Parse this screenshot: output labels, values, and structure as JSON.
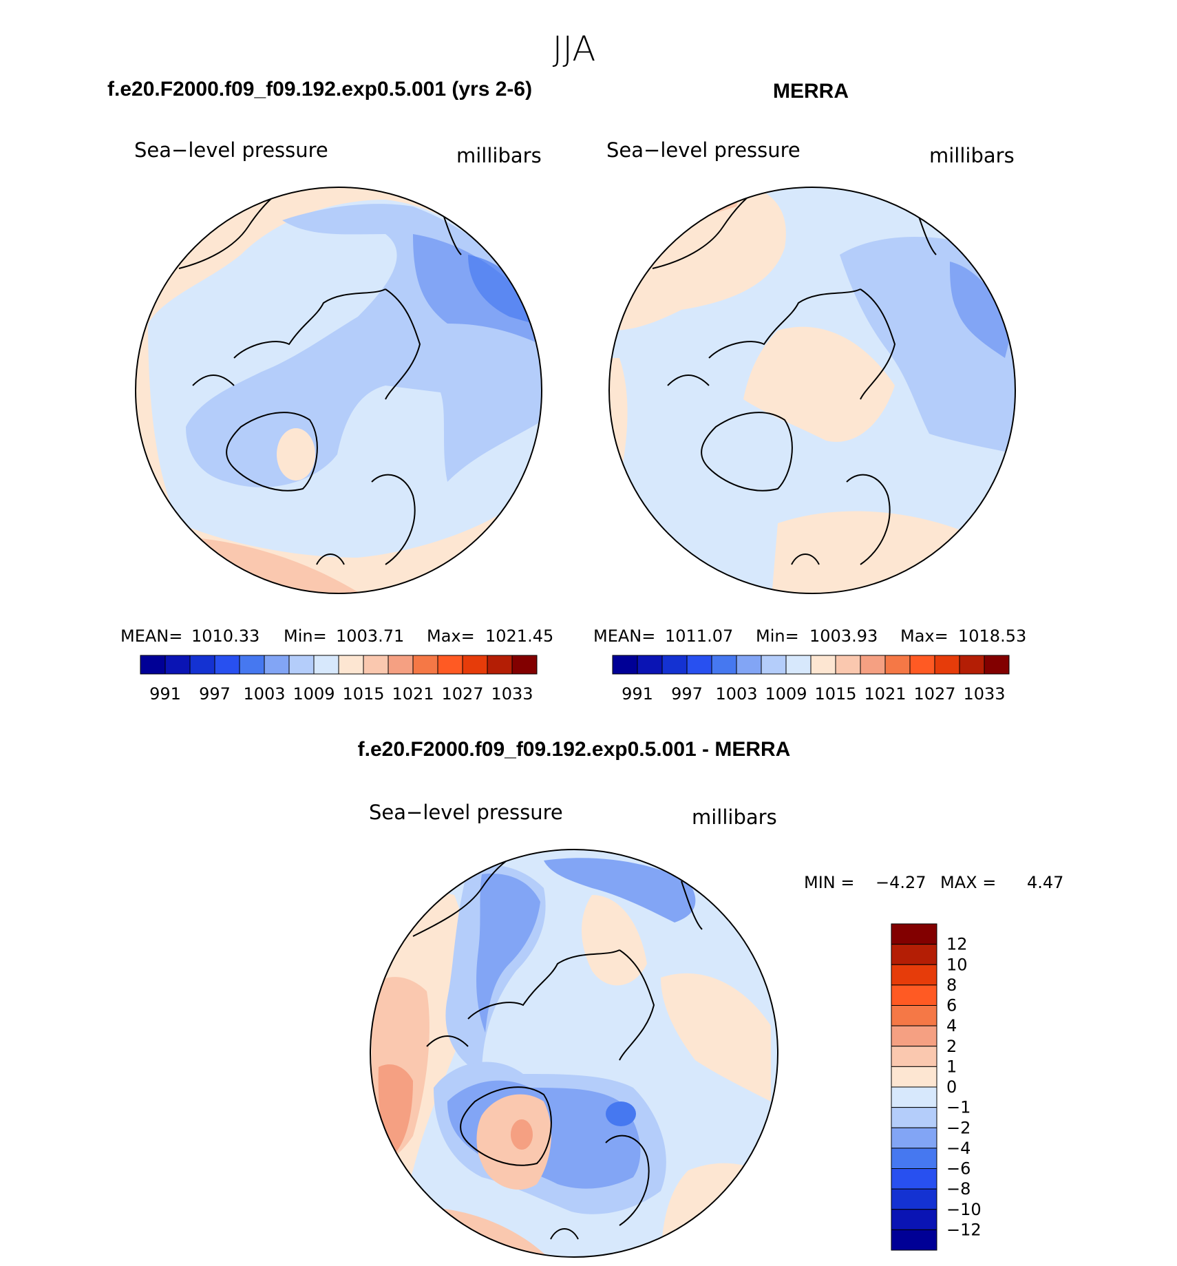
{
  "page_title": "JJA",
  "palette": {
    "blue_1": "#000096",
    "blue_2": "#0a14b4",
    "blue_3": "#1432d2",
    "blue_4": "#2850f0",
    "blue_5": "#4678f0",
    "blue_6": "#82a5f5",
    "blue_7": "#b4cdfa",
    "blue_8": "#d7e8fc",
    "red_1": "#fde6d2",
    "red_2": "#fac8af",
    "red_3": "#f5a082",
    "red_4": "#f57846",
    "red_5": "#ff5a23",
    "red_6": "#e63c0a",
    "red_7": "#b41e05",
    "red_8": "#820000",
    "coast": "#000000"
  },
  "chart_data": [
    {
      "type": "polar-contour-map",
      "title": "f.e20.F2000.f09_f09.192.exp0.5.001 (yrs 2-6)",
      "left_label": "Sea−level pressure",
      "right_label": "millibars",
      "stats": {
        "mean_label": "MEAN=",
        "mean": "1010.33",
        "min_label": "Min=",
        "min": "1003.71",
        "max_label": "Max=",
        "max": "1021.45"
      },
      "colorbar_ticks": [
        "991",
        "997",
        "1003",
        "1009",
        "1015",
        "1021",
        "1027",
        "1033"
      ],
      "levels": [
        991,
        994,
        997,
        1000,
        1003,
        1006,
        1009,
        1012,
        1015,
        1018,
        1021,
        1024,
        1027,
        1030,
        1033
      ]
    },
    {
      "type": "polar-contour-map",
      "title": "MERRA",
      "left_label": "Sea−level pressure",
      "right_label": "millibars",
      "stats": {
        "mean_label": "MEAN=",
        "mean": "1011.07",
        "min_label": "Min=",
        "min": "1003.93",
        "max_label": "Max=",
        "max": "1018.53"
      },
      "colorbar_ticks": [
        "991",
        "997",
        "1003",
        "1009",
        "1015",
        "1021",
        "1027",
        "1033"
      ],
      "levels": [
        991,
        994,
        997,
        1000,
        1003,
        1006,
        1009,
        1012,
        1015,
        1018,
        1021,
        1024,
        1027,
        1030,
        1033
      ]
    },
    {
      "type": "polar-contour-map",
      "title": "f.e20.F2000.f09_f09.192.exp0.5.001 - MERRA",
      "left_label": "Sea−level pressure",
      "right_label": "millibars",
      "stats_text": {
        "min_label": "MIN =",
        "min": "−4.27",
        "max_label": "MAX =",
        "max": "4.47"
      },
      "colorbar_ticks": [
        "12",
        "10",
        "8",
        "6",
        "4",
        "2",
        "1",
        "0",
        "−1",
        "−2",
        "−4",
        "−6",
        "−8",
        "−10",
        "−12"
      ]
    }
  ]
}
